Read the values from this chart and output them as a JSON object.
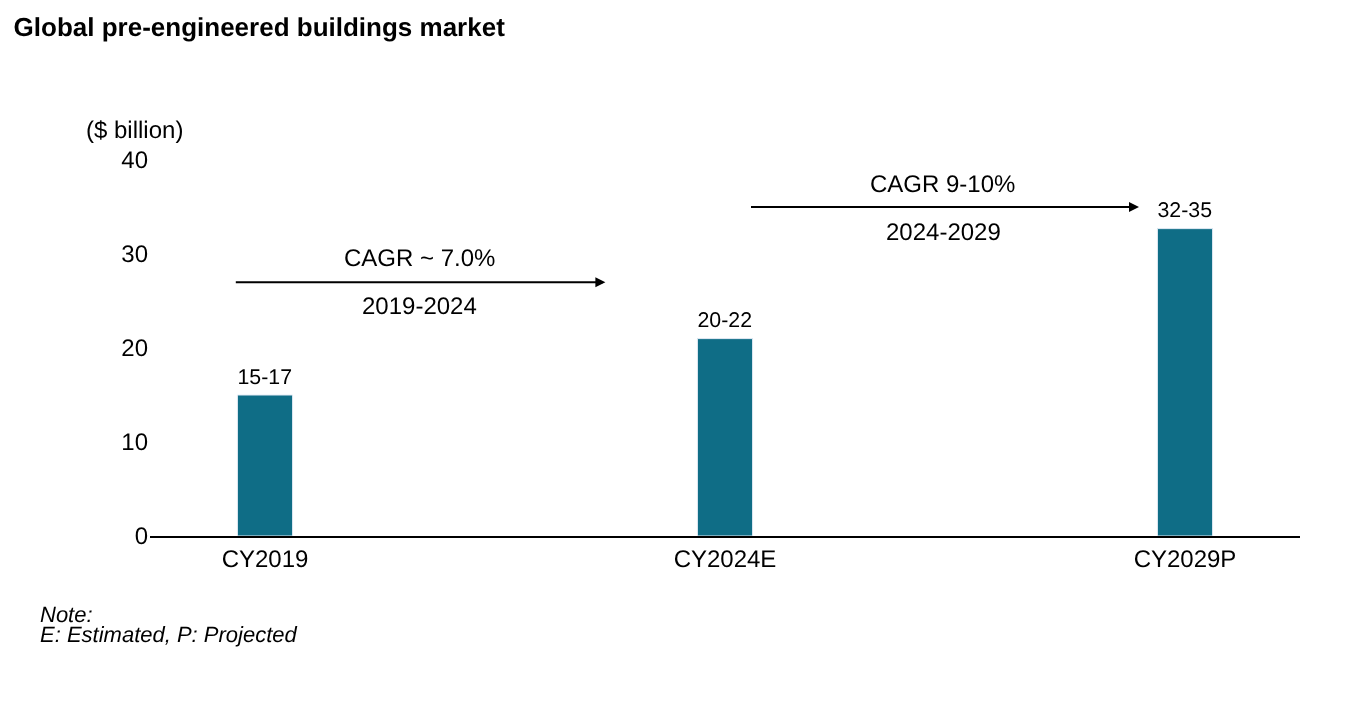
{
  "chart_data": {
    "type": "bar",
    "title": "Global pre-engineered buildings market",
    "ylabel": "($ billion)",
    "categories": [
      "CY2019",
      "CY2024E",
      "CY2029P"
    ],
    "values": [
      15,
      21,
      32.7
    ],
    "color": "#0f6d86",
    "value_labels": [
      "15-17",
      "20-22",
      "32-35"
    ],
    "ylim": [
      0,
      40
    ],
    "yticks": [
      0,
      10,
      20,
      30,
      40
    ],
    "annotations": [
      "CAGR ~ 7.0%",
      "2019-2024",
      "CAGR 9-10%",
      "2024-2029",
      "Note:",
      "E: Estimated, P: Projected"
    ]
  }
}
